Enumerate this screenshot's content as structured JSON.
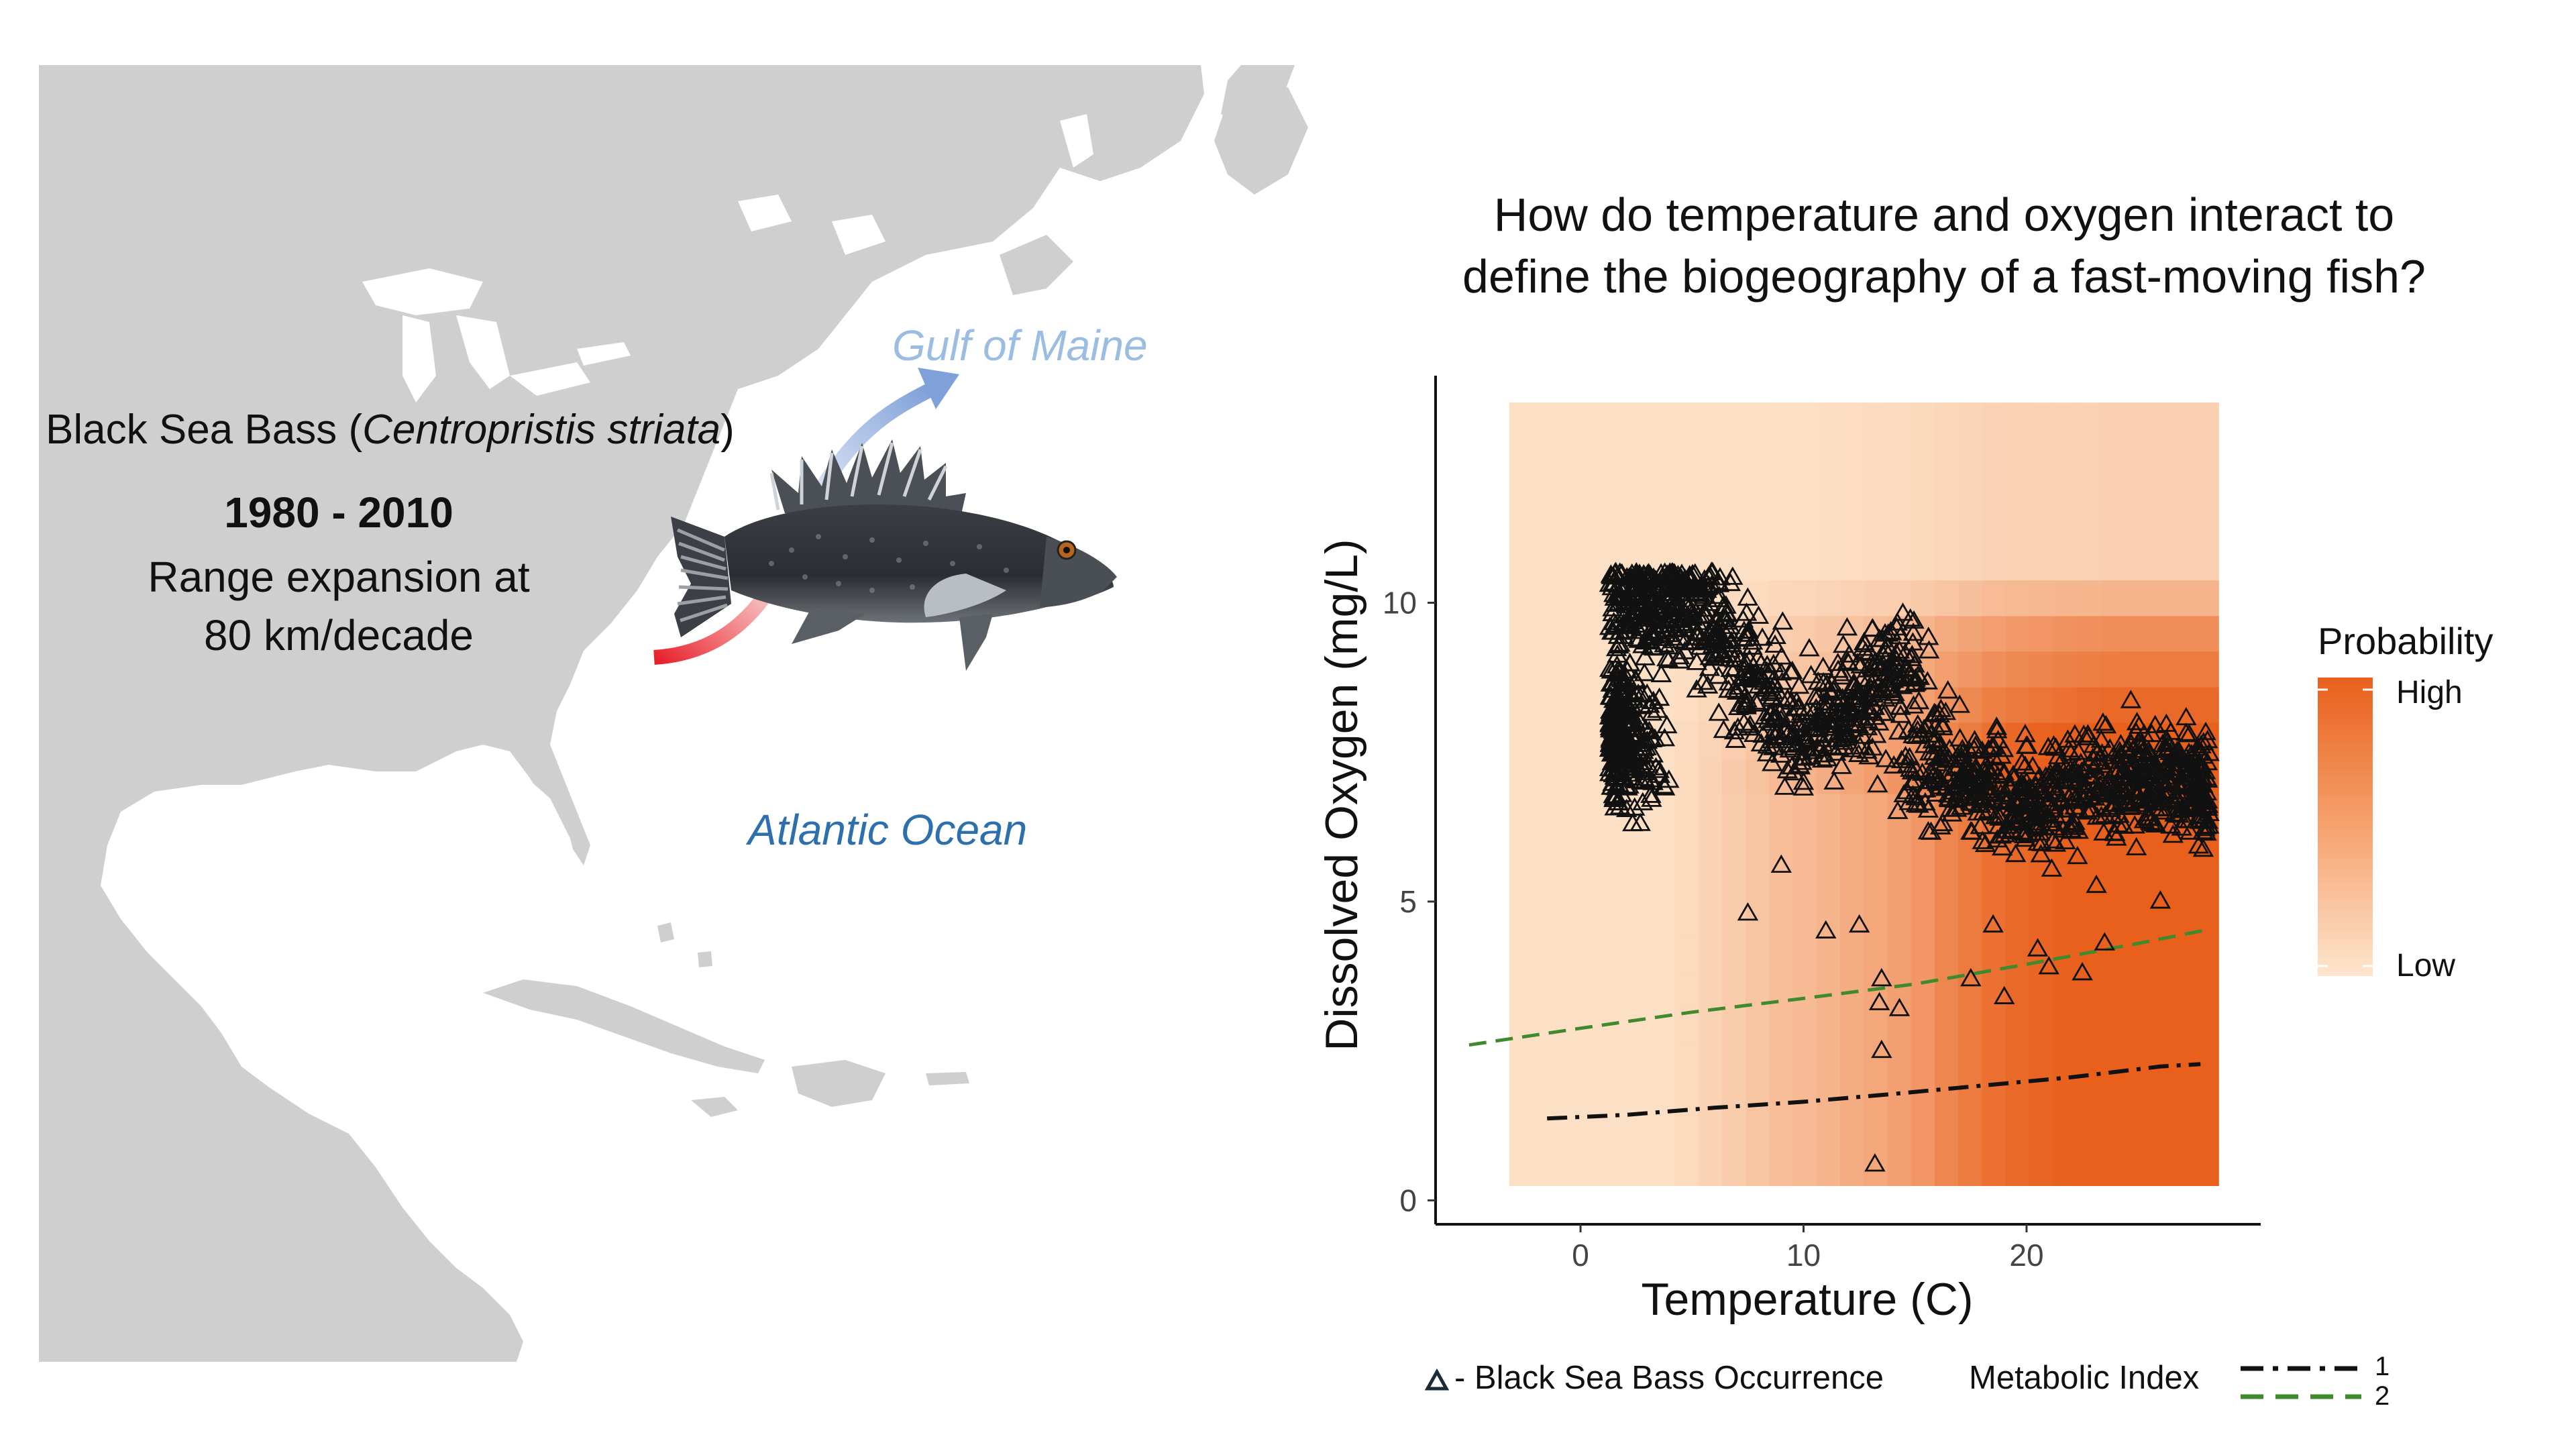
{
  "map": {
    "species_prefix": "Black Sea Bass (",
    "species_latin": "Centropristis striata",
    "species_suffix": ")",
    "years": "1980 - 2010",
    "range_line1": "Range expansion at",
    "range_line2": "80 km/decade",
    "gulf_label": "Gulf of Maine",
    "ocean_label": "Atlantic Ocean",
    "colors": {
      "land": "#cfcfd0",
      "ocean_text": "#2e6fae",
      "gulf_text": "#9bbde2",
      "arrow_start": "#e8202a",
      "arrow_end": "#7fa0d8"
    },
    "icons": [
      "fish-illustration",
      "range-arrow"
    ]
  },
  "chart_title_line1": "How do temperature and oxygen interact to",
  "chart_title_line2": "define the biogeography of a fast-moving fish?",
  "chart_data": {
    "type": "scatter",
    "xlabel": "Temperature (C)",
    "ylabel": "Dissolved Oxygen (mg/L)",
    "xlim": [
      -6.5,
      30.5
    ],
    "ylim": [
      -0.4,
      13.8
    ],
    "xticks": [
      0,
      10,
      20
    ],
    "yticks": [
      0,
      5,
      10
    ],
    "grid": false,
    "heatmap": {
      "x_range": [
        -3.2,
        28.6
      ],
      "y_range": [
        0.25,
        13.35
      ],
      "legend_title": "Probability",
      "legend_high": "High",
      "legend_low": "Low",
      "color_low": "#fde5cd",
      "color_high": "#e8601c"
    },
    "series": [
      {
        "name": "Black Sea Bass Occurrence",
        "marker": "triangle-open",
        "cluster_center_samples": [
          [
            1.5,
            8.0
          ],
          [
            1.5,
            7.9
          ],
          [
            2.0,
            7.4
          ],
          [
            2.5,
            10.1
          ],
          [
            3.5,
            9.8
          ],
          [
            4.5,
            10.4
          ],
          [
            6.0,
            9.4
          ],
          [
            8.0,
            8.6
          ],
          [
            10.0,
            7.8
          ],
          [
            12.0,
            8.2
          ],
          [
            14.0,
            8.9
          ],
          [
            16.0,
            7.3
          ],
          [
            18.0,
            7.0
          ],
          [
            20.0,
            6.6
          ],
          [
            22.0,
            6.8
          ],
          [
            24.0,
            7.2
          ],
          [
            26.0,
            7.0
          ],
          [
            27.5,
            6.9
          ]
        ],
        "outliers": [
          [
            1.5,
            6.7
          ],
          [
            7.5,
            4.8
          ],
          [
            9.0,
            5.6
          ],
          [
            11.0,
            4.5
          ],
          [
            12.5,
            4.6
          ],
          [
            13.5,
            3.7
          ],
          [
            13.4,
            3.3
          ],
          [
            14.3,
            3.2
          ],
          [
            13.5,
            2.5
          ],
          [
            13.2,
            0.6
          ],
          [
            17.5,
            3.7
          ],
          [
            19.0,
            3.4
          ],
          [
            21.0,
            3.9
          ],
          [
            22.5,
            3.8
          ],
          [
            23.5,
            4.3
          ],
          [
            26.0,
            5.0
          ],
          [
            18.5,
            4.6
          ],
          [
            20.5,
            4.2
          ]
        ],
        "color": "#111111"
      },
      {
        "name": "1",
        "group": "Metabolic Index",
        "style": "dash-dot",
        "color": "#111111",
        "x": [
          -1.5,
          2,
          6,
          10,
          14,
          18,
          22,
          26,
          27.8
        ],
        "y": [
          1.37,
          1.43,
          1.55,
          1.65,
          1.78,
          1.92,
          2.06,
          2.24,
          2.28
        ]
      },
      {
        "name": "2",
        "group": "Metabolic Index",
        "style": "dashed",
        "color": "#3e8a2c",
        "x": [
          -5,
          0,
          5,
          10,
          15,
          20,
          25,
          28
        ],
        "y": [
          2.6,
          2.88,
          3.15,
          3.38,
          3.62,
          3.95,
          4.3,
          4.52
        ]
      }
    ],
    "legend": {
      "occurrence_label": "- Black Sea Bass Occurrence",
      "metabolic_title": "Metabolic Index",
      "line1_label": "1",
      "line2_label": "2"
    }
  }
}
